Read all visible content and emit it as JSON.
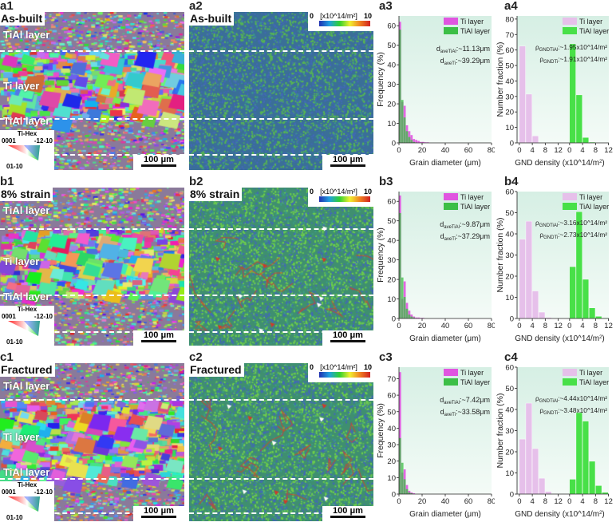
{
  "rows": [
    {
      "map1": {
        "label": "a1",
        "title": "As-built",
        "layers": [
          "TiAl layer",
          "Ti layer",
          "TiAl layer"
        ],
        "scale": "100 μm",
        "ipf": {
          "title": "Ti-Hex",
          "left": "0001",
          "right": "-12-10",
          "bottom": "01-10"
        }
      },
      "map2": {
        "label": "a2",
        "title": "As-built",
        "scale": "100 μm",
        "colorbar": {
          "min": "0",
          "unit": "[x10^14/m²]",
          "max": "10"
        }
      },
      "c3label": "a3",
      "c4label": "a4"
    },
    {
      "map1": {
        "label": "b1",
        "title": "8% strain",
        "layers": [
          "TiAl layer",
          "Ti layer",
          "TiAl layer"
        ],
        "scale": "100 μm",
        "ipf": {
          "title": "Ti-Hex",
          "left": "0001",
          "right": "-12-10",
          "bottom": "01-10"
        }
      },
      "map2": {
        "label": "b2",
        "title": "8% strain",
        "scale": "100 μm",
        "colorbar": {
          "min": "0",
          "unit": "[x10^14/m²]",
          "max": "10"
        }
      },
      "c3label": "b3",
      "c4label": "b4"
    },
    {
      "map1": {
        "label": "c1",
        "title": "Fractured",
        "layers": [
          "TiAl layer",
          "Ti layer",
          "TiAl layer"
        ],
        "scale": "100 μm",
        "ipf": {
          "title": "Ti-Hex",
          "left": "0001",
          "right": "-12-10",
          "bottom": "01-10"
        }
      },
      "map2": {
        "label": "c2",
        "title": "Fractured",
        "scale": "100 μm",
        "colorbar": {
          "min": "0",
          "unit": "[x10^14/m²]",
          "max": "10"
        }
      },
      "c3label": "c3",
      "c4label": "c4"
    }
  ],
  "colors": {
    "ti_grain": "#e055e0",
    "tial_grain": "#3cbf46",
    "ti_gnd": "#e6c0ea",
    "tial_gnd": "#48e048",
    "plot_bg": "#e6f5ee"
  },
  "chart_data": [
    {
      "type": "bar",
      "kind": "grain",
      "xlabel": "Grain diameter (μm)",
      "ylabel": "Frequency (%)",
      "xlim": [
        0,
        80
      ],
      "xticks": [
        0,
        20,
        40,
        60,
        80
      ],
      "ylim": [
        0,
        65
      ],
      "yticks": [
        0,
        10,
        20,
        30,
        40,
        50,
        60
      ],
      "bin_width": 2,
      "series": [
        {
          "name": "Ti layer",
          "values": [
            62,
            21,
            19,
            9,
            6,
            4,
            2,
            1.5,
            1,
            0.5,
            0.5,
            0.3,
            0.3
          ]
        },
        {
          "name": "TiAl layer",
          "values": [
            58,
            22,
            13,
            6,
            3,
            1.5,
            0.5,
            0.2
          ]
        }
      ],
      "annotations": [
        {
          "sym": "d",
          "sub": "aveTiAl",
          "text": ":~11.13μm"
        },
        {
          "sym": "d",
          "sub": "aveTi",
          "text": ":~39.29μm"
        }
      ]
    },
    {
      "type": "bar",
      "kind": "gnd",
      "xlabel": "GND density (x10^14/m",
      "xlabel_sup": "2",
      "xlabel_end": ")",
      "ylabel": "Number fraction (%)",
      "xlim": [
        0,
        12
      ],
      "xticks": [
        0,
        4,
        8,
        12
      ],
      "ylim": [
        0,
        82
      ],
      "yticks": [
        0,
        10,
        20,
        30,
        40,
        50,
        60,
        70,
        80
      ],
      "bin_width": 2,
      "series": [
        {
          "name": "Ti layer",
          "values": [
            62.5,
            31.5,
            4.5,
            0,
            0,
            0
          ]
        },
        {
          "name": "TiAl layer",
          "values": [
            64,
            31,
            3.5,
            0.5,
            0,
            0
          ]
        }
      ],
      "annotations": [
        {
          "sym": "ρ",
          "sub": "GNDTiAl",
          "text": ":~1.95x10^14/m²"
        },
        {
          "sym": "ρ",
          "sub": "GNDTi",
          "text": ":~1.91x10^14/m²"
        }
      ]
    },
    {
      "type": "bar",
      "kind": "grain",
      "xlabel": "Grain diameter (μm)",
      "ylabel": "Frequency (%)",
      "xlim": [
        0,
        80
      ],
      "xticks": [
        0,
        20,
        40,
        60,
        80
      ],
      "ylim": [
        0,
        65
      ],
      "yticks": [
        0,
        10,
        20,
        30,
        40,
        50,
        60
      ],
      "bin_width": 2,
      "series": [
        {
          "name": "Ti layer",
          "values": [
            63,
            10,
            19,
            8,
            4,
            2,
            1,
            0.5,
            0.5,
            0.3,
            0.3
          ]
        },
        {
          "name": "TiAl layer",
          "values": [
            54,
            21,
            11,
            5,
            2,
            1,
            0.5
          ]
        }
      ],
      "annotations": [
        {
          "sym": "d",
          "sub": "aveTiAl",
          "text": ":~9.87μm"
        },
        {
          "sym": "d",
          "sub": "aveTi",
          "text": ":~37.29μm"
        }
      ]
    },
    {
      "type": "bar",
      "kind": "gnd",
      "xlabel": "GND density (x10^14/m",
      "xlabel_sup": "2",
      "xlabel_end": ")",
      "ylabel": "Number fraction (%)",
      "xlim": [
        0,
        12
      ],
      "xticks": [
        0,
        4,
        8,
        12
      ],
      "ylim": [
        0,
        60
      ],
      "yticks": [
        0,
        10,
        20,
        30,
        40,
        50,
        60
      ],
      "bin_width": 2,
      "series": [
        {
          "name": "Ti layer",
          "values": [
            37.5,
            46,
            13,
            3,
            0.5,
            0
          ]
        },
        {
          "name": "TiAl layer",
          "values": [
            24.5,
            50.5,
            18.5,
            5,
            1,
            0.3
          ]
        }
      ],
      "annotations": [
        {
          "sym": "ρ",
          "sub": "GNDTiAl",
          "text": ":~3.16x10^14/m²"
        },
        {
          "sym": "ρ",
          "sub": "GNDTi",
          "text": ":~2.73x10^14/m²"
        }
      ]
    },
    {
      "type": "bar",
      "kind": "grain",
      "xlabel": "Grain diameter (μm)",
      "ylabel": "Frequency (%)",
      "xlim": [
        0,
        80
      ],
      "xticks": [
        0,
        20,
        40,
        60,
        80
      ],
      "ylim": [
        0,
        77
      ],
      "yticks": [
        0,
        10,
        20,
        30,
        40,
        50,
        60,
        70
      ],
      "bin_width": 2,
      "series": [
        {
          "name": "Ti layer",
          "values": [
            74,
            13,
            15,
            5.5,
            2,
            1,
            0.5
          ]
        },
        {
          "name": "TiAl layer",
          "values": [
            34,
            19,
            9,
            3,
            1,
            0.5
          ]
        }
      ],
      "annotations": [
        {
          "sym": "d",
          "sub": "aveTiAl",
          "text": ":~7.42μm"
        },
        {
          "sym": "d",
          "sub": "aveTi",
          "text": ":~33.58μm"
        }
      ]
    },
    {
      "type": "bar",
      "kind": "gnd",
      "xlabel": "GND density (x10^14/m",
      "xlabel_sup": "2",
      "xlabel_end": ")",
      "ylabel": "Number fraction (%)",
      "xlim": [
        0,
        12
      ],
      "xticks": [
        0,
        4,
        8,
        12
      ],
      "ylim": [
        0,
        60
      ],
      "yticks": [
        0,
        10,
        20,
        30,
        40,
        50,
        60
      ],
      "bin_width": 2,
      "series": [
        {
          "name": "Ti layer",
          "values": [
            26,
            43,
            21.5,
            7.5,
            1.2,
            0
          ]
        },
        {
          "name": "TiAl layer",
          "values": [
            7,
            38.5,
            34.5,
            15.5,
            4,
            0.8
          ]
        }
      ],
      "annotations": [
        {
          "sym": "ρ",
          "sub": "GNDTiAl",
          "text": ":~4.44x10^14/m²"
        },
        {
          "sym": "ρ",
          "sub": "GNDTi",
          "text": ":~3.48x10^14/m²"
        }
      ]
    }
  ]
}
